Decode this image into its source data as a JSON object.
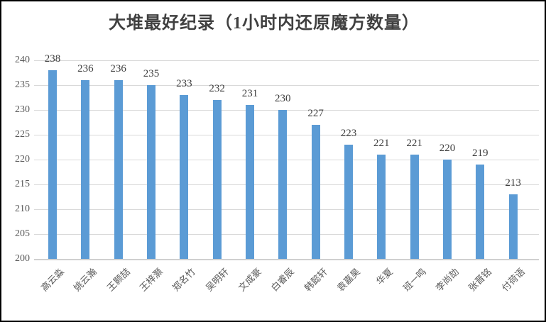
{
  "chart_data": {
    "type": "bar",
    "title": "大堆最好纪录（1小时内还原魔方数量）",
    "categories": [
      "高云淼",
      "姚云瀚",
      "王颢喆",
      "王梓灏",
      "郑名竹",
      "吴明轩",
      "文成豪",
      "白睿辰",
      "韩懿轩",
      "袁嘉昊",
      "华夏",
      "班一鸣",
      "李尚劼",
      "张晋铭",
      "付荷语"
    ],
    "values": [
      238,
      236,
      236,
      235,
      233,
      232,
      231,
      230,
      227,
      223,
      221,
      221,
      220,
      219,
      213
    ],
    "xlabel": "",
    "ylabel": "",
    "ylim": [
      200,
      240
    ],
    "ytick_step": 5,
    "grid": true,
    "legend": "none",
    "data_labels": true,
    "colors": {
      "bar": "#5b9bd5",
      "gridline": "#d9d9d9",
      "title_text": "#404040",
      "value_label_text": "#3d3d3d",
      "axis_tick_text": "#595959",
      "frame_border": "#000000",
      "background": "#ffffff"
    }
  }
}
